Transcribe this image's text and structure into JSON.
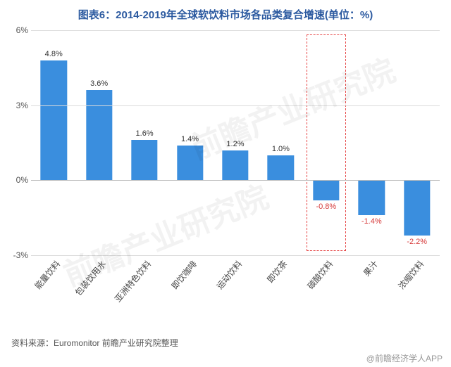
{
  "title": "图表6：2014-2019年全球软饮料市场各品类复合增速(单位：%)",
  "title_fontsize": 15,
  "title_color": "#2c5aa0",
  "source": "资料来源：Euromonitor 前瞻产业研究院整理",
  "brand": "@前瞻经济学人APP",
  "watermark": "前瞻产业研究院",
  "chart": {
    "type": "bar",
    "categories": [
      "能量饮料",
      "包装饮用水",
      "亚洲特色饮料",
      "即饮咖啡",
      "运动饮料",
      "即饮茶",
      "碳酸饮料",
      "果汁",
      "浓缩饮料"
    ],
    "values": [
      4.8,
      3.6,
      1.6,
      1.4,
      1.2,
      1.0,
      -0.8,
      -1.4,
      -2.2
    ],
    "value_labels": [
      "4.8%",
      "3.6%",
      "1.6%",
      "1.4%",
      "1.2%",
      "1.0%",
      "-0.8%",
      "-1.4%",
      "-2.2%"
    ],
    "ylim": [
      -3,
      6
    ],
    "yticks": [
      -3,
      0,
      3,
      6
    ],
    "ytick_labels": [
      "-3%",
      "0%",
      "3%",
      "6%"
    ],
    "bar_color": "#3a8ede",
    "bar_width_pct": 58,
    "pos_label_color": "#333333",
    "neg_label_color": "#d63a3a",
    "background_color": "#ffffff",
    "grid_color": "#dcdcdc",
    "axis_color": "#bbbbbb",
    "label_fontsize": 11,
    "xlabel_rotation_deg": -50,
    "highlight_index": 6,
    "highlight_border_color": "#e64545"
  }
}
